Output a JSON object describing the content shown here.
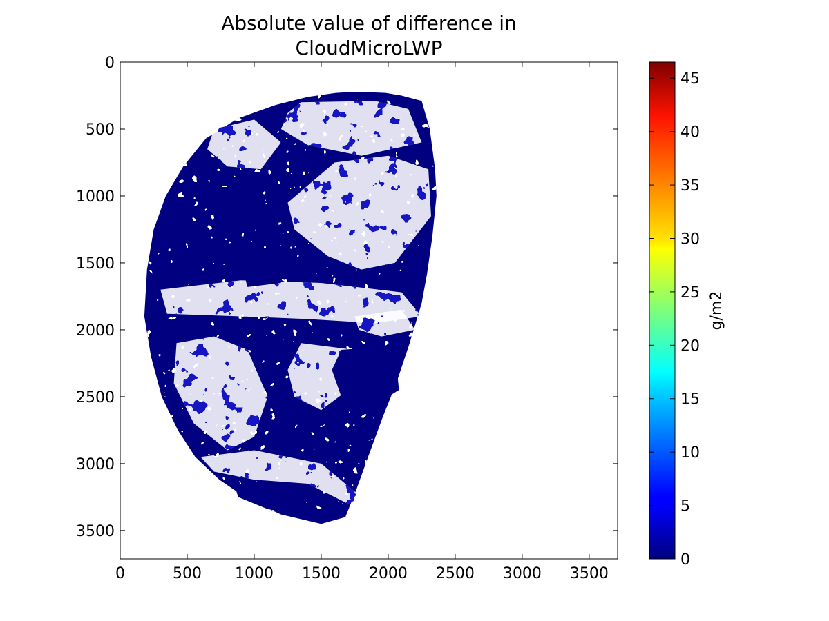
{
  "chart_data": {
    "type": "heatmap",
    "title_line1": "Absolute value of difference in",
    "title_line2": "CloudMicroLWP",
    "xlim": [
      0,
      3712
    ],
    "ylim": [
      3712,
      0
    ],
    "x_ticks": [
      0,
      500,
      1000,
      1500,
      2000,
      2500,
      3000,
      3500
    ],
    "y_ticks": [
      0,
      500,
      1000,
      1500,
      2000,
      2500,
      3000,
      3500
    ],
    "colorbar": {
      "label": "g/m2",
      "min": 0,
      "max": 46.5,
      "ticks": [
        0,
        5,
        10,
        15,
        20,
        25,
        30,
        35,
        40,
        45
      ],
      "colormap": "jet"
    },
    "dominant_value": 0,
    "dominant_color": "#000080",
    "disk_outline": [
      [
        1610,
        230
      ],
      [
        1700,
        225
      ],
      [
        1850,
        225
      ],
      [
        1980,
        230
      ],
      [
        2100,
        250
      ],
      [
        2250,
        290
      ],
      [
        2310,
        500
      ],
      [
        2350,
        800
      ],
      [
        2360,
        1000
      ],
      [
        2330,
        1300
      ],
      [
        2290,
        1580
      ],
      [
        2250,
        1800
      ],
      [
        2160,
        2100
      ],
      [
        2060,
        2400
      ],
      [
        1960,
        2650
      ],
      [
        1850,
        2950
      ],
      [
        1760,
        3200
      ],
      [
        1680,
        3400
      ],
      [
        1500,
        3450
      ],
      [
        1200,
        3380
      ],
      [
        960,
        3270
      ],
      [
        740,
        3120
      ],
      [
        560,
        2950
      ],
      [
        430,
        2750
      ],
      [
        310,
        2500
      ],
      [
        230,
        2200
      ],
      [
        180,
        1900
      ],
      [
        200,
        1550
      ],
      [
        250,
        1250
      ],
      [
        340,
        1000
      ],
      [
        470,
        780
      ],
      [
        640,
        570
      ],
      [
        880,
        420
      ],
      [
        1160,
        320
      ],
      [
        1400,
        260
      ]
    ],
    "cloud_regions": [
      [
        [
          1350,
          300
        ],
        [
          1900,
          290
        ],
        [
          2150,
          350
        ],
        [
          2250,
          600
        ],
        [
          1800,
          700
        ],
        [
          1400,
          620
        ],
        [
          1200,
          500
        ],
        [
          1250,
          380
        ]
      ],
      [
        [
          1600,
          750
        ],
        [
          2000,
          700
        ],
        [
          2300,
          800
        ],
        [
          2320,
          1150
        ],
        [
          2050,
          1500
        ],
        [
          1800,
          1550
        ],
        [
          1550,
          1450
        ],
        [
          1300,
          1250
        ],
        [
          1250,
          1050
        ]
      ],
      [
        [
          300,
          1700
        ],
        [
          900,
          1630
        ],
        [
          1500,
          1650
        ],
        [
          2100,
          1720
        ],
        [
          2250,
          1900
        ],
        [
          1900,
          1950
        ],
        [
          1400,
          1920
        ],
        [
          900,
          1900
        ],
        [
          350,
          1880
        ]
      ],
      [
        [
          420,
          2100
        ],
        [
          700,
          2050
        ],
        [
          950,
          2150
        ],
        [
          1100,
          2500
        ],
        [
          1000,
          2800
        ],
        [
          800,
          2900
        ],
        [
          550,
          2700
        ],
        [
          400,
          2400
        ]
      ],
      [
        [
          1350,
          2100
        ],
        [
          1750,
          2150
        ],
        [
          1900,
          2300
        ],
        [
          1700,
          2450
        ],
        [
          1500,
          2600
        ],
        [
          1300,
          2500
        ],
        [
          1250,
          2300
        ]
      ],
      [
        [
          600,
          2950
        ],
        [
          1000,
          2900
        ],
        [
          1500,
          3000
        ],
        [
          1800,
          3250
        ],
        [
          1700,
          3300
        ],
        [
          1400,
          3150
        ],
        [
          1000,
          3120
        ],
        [
          700,
          3060
        ]
      ],
      [
        [
          700,
          500
        ],
        [
          1000,
          430
        ],
        [
          1200,
          600
        ],
        [
          1050,
          800
        ],
        [
          800,
          780
        ],
        [
          650,
          650
        ]
      ],
      [
        [
          1750,
          1900
        ],
        [
          2100,
          1850
        ],
        [
          2200,
          2000
        ],
        [
          1950,
          2050
        ],
        [
          1780,
          2000
        ]
      ]
    ],
    "dark_patches": [
      [
        [
          1650,
          2150
        ],
        [
          2050,
          2120
        ],
        [
          2080,
          2450
        ],
        [
          1900,
          2560
        ],
        [
          1650,
          2500
        ],
        [
          1580,
          2300
        ]
      ],
      [
        [
          800,
          1000
        ],
        [
          1000,
          950
        ],
        [
          1080,
          1150
        ],
        [
          900,
          1250
        ],
        [
          760,
          1150
        ]
      ],
      [
        [
          900,
          1500
        ],
        [
          1150,
          1450
        ],
        [
          1200,
          1650
        ],
        [
          950,
          1680
        ]
      ],
      [
        [
          850,
          3150
        ],
        [
          1300,
          3200
        ],
        [
          1450,
          3400
        ],
        [
          1100,
          3340
        ],
        [
          880,
          3250
        ]
      ]
    ]
  }
}
